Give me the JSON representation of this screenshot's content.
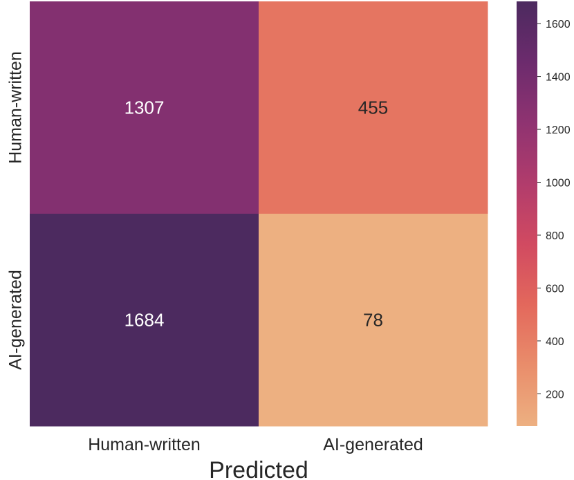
{
  "chart_data": {
    "type": "heatmap",
    "title": "",
    "xlabel": "Predicted",
    "ylabel": "",
    "x_categories": [
      "Human-written",
      "AI-generated"
    ],
    "y_categories": [
      "Human-written",
      "AI-generated"
    ],
    "values": [
      [
        1307,
        455
      ],
      [
        1684,
        78
      ]
    ],
    "colorbar": {
      "min": 78,
      "max": 1684,
      "ticks": [
        200,
        400,
        600,
        800,
        1000,
        1200,
        1400,
        1600
      ],
      "colormap": "flare"
    },
    "grid": false
  },
  "colors": {
    "cmap_stops": [
      "#edb081",
      "#e98d6b",
      "#e3685c",
      "#d14a61",
      "#b13c6c",
      "#8f3371",
      "#6c2b6d",
      "#4c2a5f"
    ],
    "text_light": "#ffffff",
    "text_dark": "#262626"
  }
}
